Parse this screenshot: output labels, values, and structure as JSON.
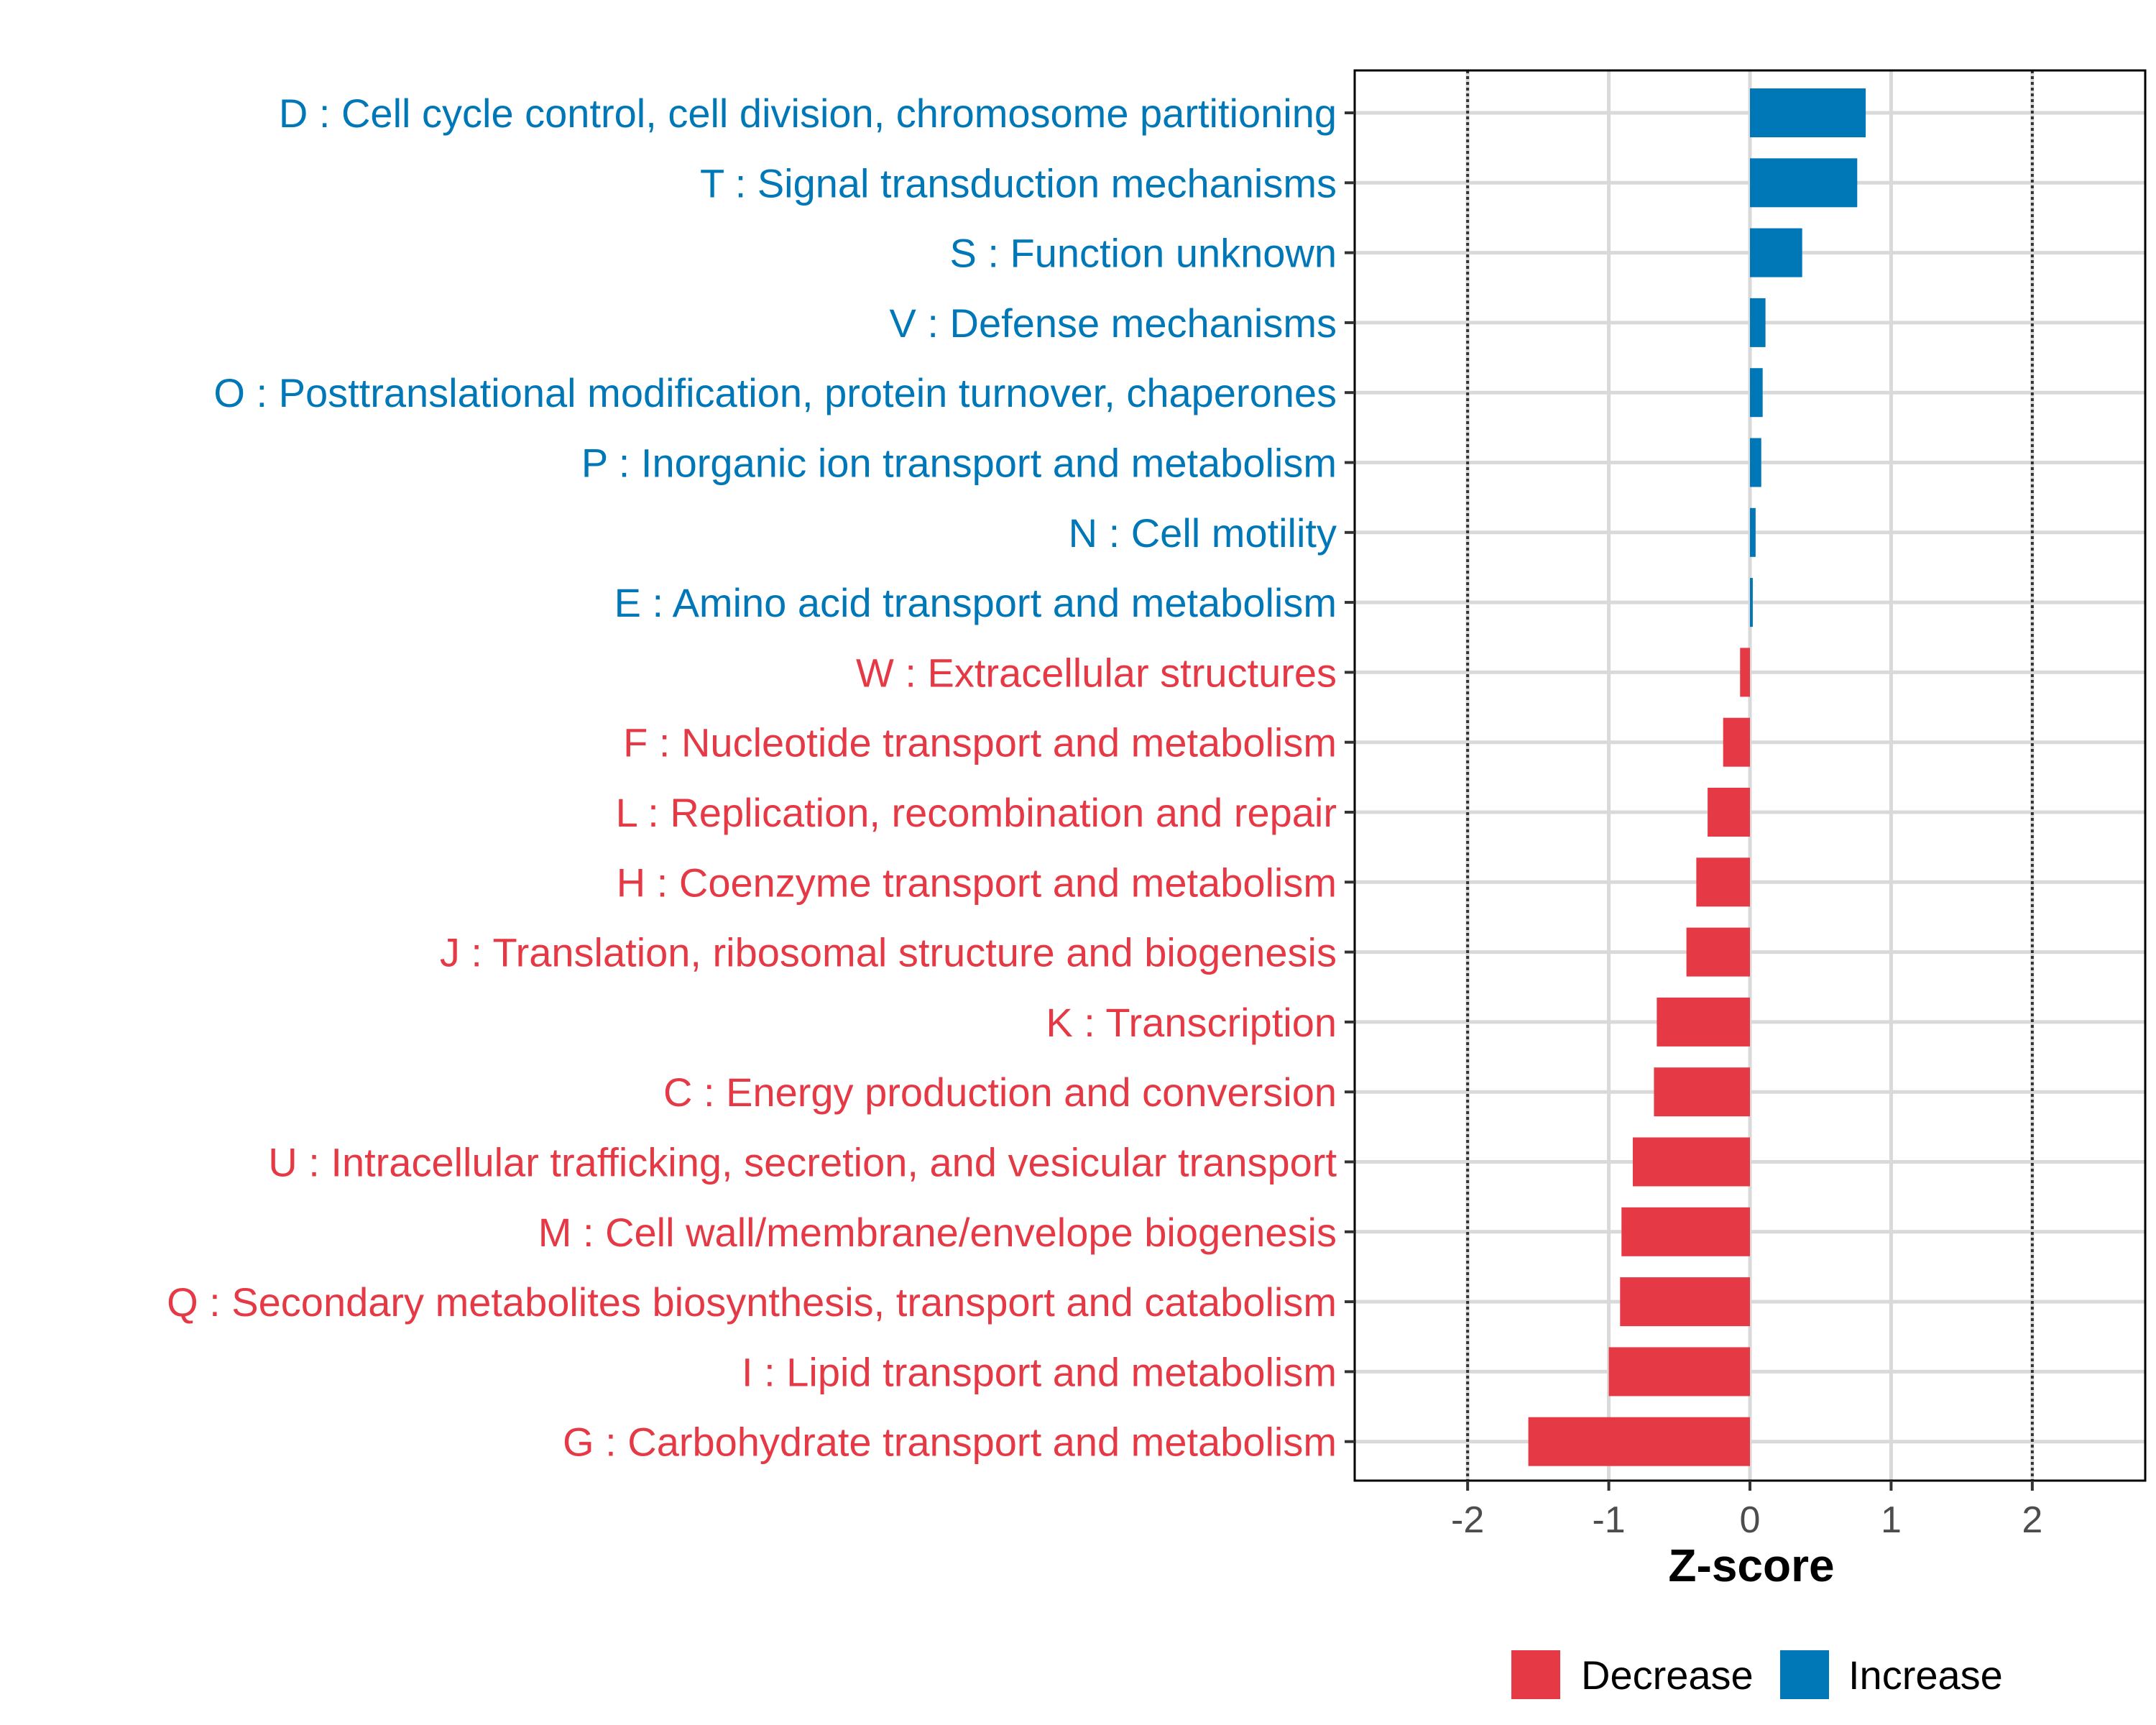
{
  "chart_data": {
    "type": "bar",
    "orientation": "horizontal",
    "xlabel": "Z-score",
    "xlim": [
      -2.8,
      2.8
    ],
    "xticks": [
      -2,
      -1,
      0,
      1,
      2
    ],
    "xtick_labels": [
      "-2",
      "-1",
      "0",
      "1",
      "2"
    ],
    "reference_lines": [
      -2,
      2
    ],
    "grid": true,
    "legend_position": "bottom",
    "legend": [
      {
        "name": "Decrease",
        "color": "#E63946"
      },
      {
        "name": "Increase",
        "color": "#0077B6"
      }
    ],
    "categories": [
      "D : Cell cycle control, cell division, chromosome partitioning",
      "T : Signal transduction mechanisms",
      "S : Function unknown",
      "V : Defense mechanisms",
      "O : Posttranslational modification, protein turnover, chaperones",
      "P : Inorganic ion transport and metabolism",
      "N : Cell motility",
      "E : Amino acid transport and metabolism",
      "W : Extracellular structures",
      "F : Nucleotide transport and metabolism",
      "L : Replication, recombination and repair",
      "H : Coenzyme transport and metabolism",
      "J : Translation, ribosomal structure and biogenesis",
      "K : Transcription",
      "C : Energy production and conversion",
      "U : Intracellular trafficking, secretion, and vesicular transport",
      "M : Cell wall/membrane/envelope biogenesis",
      "Q : Secondary metabolites biosynthesis, transport and catabolism",
      "I : Lipid transport and metabolism",
      "G : Carbohydrate transport and metabolism"
    ],
    "values": [
      0.82,
      0.76,
      0.37,
      0.11,
      0.09,
      0.08,
      0.04,
      0.02,
      -0.07,
      -0.19,
      -0.3,
      -0.38,
      -0.45,
      -0.66,
      -0.68,
      -0.83,
      -0.91,
      -0.92,
      -1.0,
      -1.57
    ],
    "groups": [
      "Increase",
      "Increase",
      "Increase",
      "Increase",
      "Increase",
      "Increase",
      "Increase",
      "Increase",
      "Decrease",
      "Decrease",
      "Decrease",
      "Decrease",
      "Decrease",
      "Decrease",
      "Decrease",
      "Decrease",
      "Decrease",
      "Decrease",
      "Decrease",
      "Decrease"
    ]
  }
}
